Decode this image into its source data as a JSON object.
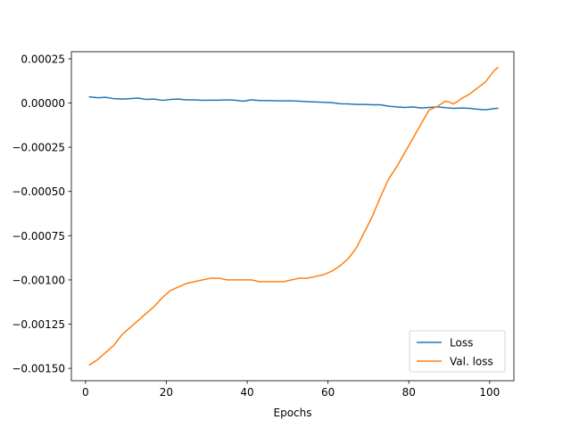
{
  "chart_data": {
    "type": "line",
    "title": "",
    "xlabel": "Epochs",
    "ylabel": "",
    "xlim": [
      -3.5,
      106.0
    ],
    "ylim": [
      -0.00157,
      0.00029
    ],
    "x_ticks": [
      0,
      20,
      40,
      60,
      80,
      100
    ],
    "x_tick_labels": [
      "0",
      "20",
      "40",
      "60",
      "80",
      "100"
    ],
    "y_ticks": [
      0.00025,
      0.0,
      -0.00025,
      -0.0005,
      -0.00075,
      -0.001,
      -0.00125,
      -0.0015
    ],
    "y_tick_labels": [
      "0.00025",
      "0.00000",
      "−0.00025",
      "−0.00050",
      "−0.00075",
      "−0.00100",
      "−0.00125",
      "−0.00150"
    ],
    "grid": false,
    "legend_position": "lower-right",
    "series": [
      {
        "name": "Loss",
        "color": "#1f77b4",
        "x": [
          1,
          3,
          5,
          7,
          9,
          11,
          13,
          15,
          17,
          19,
          21,
          23,
          25,
          27,
          29,
          31,
          33,
          35,
          37,
          39,
          41,
          43,
          45,
          47,
          49,
          51,
          53,
          55,
          57,
          59,
          61,
          63,
          65,
          67,
          69,
          71,
          73,
          75,
          77,
          79,
          81,
          83,
          85,
          87,
          89,
          91,
          93,
          95,
          97,
          99,
          101,
          102
        ],
        "y": [
          3.5e-05,
          3e-05,
          3.2e-05,
          2.5e-05,
          2.2e-05,
          2.5e-05,
          2.8e-05,
          2e-05,
          2.2e-05,
          1.5e-05,
          2e-05,
          2.2e-05,
          1.8e-05,
          1.8e-05,
          1.5e-05,
          1.6e-05,
          1.6e-05,
          1.8e-05,
          1.6e-05,
          1e-05,
          1.8e-05,
          1.4e-05,
          1.4e-05,
          1.3e-05,
          1.2e-05,
          1.2e-05,
          1e-05,
          8e-06,
          6e-06,
          4e-06,
          2e-06,
          -4e-06,
          -5e-06,
          -8e-06,
          -8e-06,
          -1e-05,
          -1e-05,
          -1.8e-05,
          -2.2e-05,
          -2.5e-05,
          -2.2e-05,
          -2.8e-05,
          -2.5e-05,
          -2.2e-05,
          -2.6e-05,
          -3e-05,
          -2.8e-05,
          -3e-05,
          -3.5e-05,
          -3.8e-05,
          -3.2e-05,
          -3e-05
        ]
      },
      {
        "name": "Val. loss",
        "color": "#ff7f0e",
        "x": [
          1,
          3,
          5,
          7,
          9,
          11,
          13,
          15,
          17,
          19,
          21,
          23,
          25,
          27,
          29,
          31,
          33,
          35,
          37,
          39,
          41,
          43,
          45,
          47,
          49,
          51,
          53,
          55,
          57,
          59,
          61,
          63,
          65,
          67,
          69,
          71,
          73,
          75,
          77,
          79,
          81,
          83,
          85,
          87,
          89,
          90,
          91,
          92,
          93,
          95,
          97,
          99,
          101,
          102
        ],
        "y": [
          -0.00148,
          -0.00145,
          -0.00141,
          -0.00137,
          -0.00131,
          -0.00127,
          -0.00123,
          -0.00119,
          -0.00115,
          -0.0011,
          -0.00106,
          -0.00104,
          -0.00102,
          -0.00101,
          -0.001,
          -0.00099,
          -0.00099,
          -0.001,
          -0.001,
          -0.001,
          -0.001,
          -0.00101,
          -0.00101,
          -0.00101,
          -0.00101,
          -0.001,
          -0.00099,
          -0.00099,
          -0.00098,
          -0.00097,
          -0.00095,
          -0.00092,
          -0.00088,
          -0.00082,
          -0.00073,
          -0.00064,
          -0.00053,
          -0.00043,
          -0.00036,
          -0.00028,
          -0.0002,
          -0.00012,
          -4e-05,
          -2e-05,
          1e-05,
          5e-06,
          -5e-06,
          8e-06,
          2.5e-05,
          5e-05,
          8.5e-05,
          0.00012,
          0.00018,
          0.0002
        ]
      }
    ]
  }
}
